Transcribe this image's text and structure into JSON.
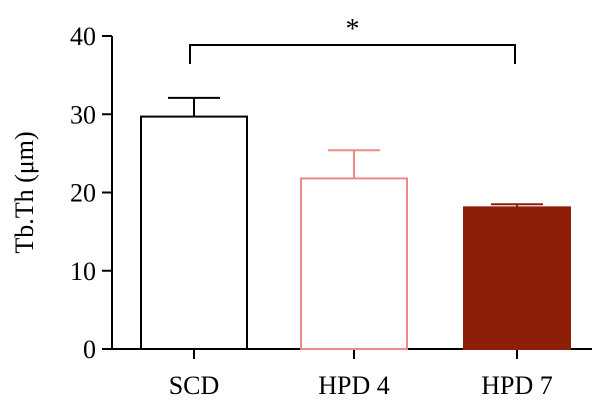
{
  "chart_data": {
    "type": "bar",
    "title": "",
    "xlabel": "",
    "ylabel": "Tb.Th (μm)",
    "categories": [
      "SCD",
      "HPD 4",
      "HPD 7"
    ],
    "values": [
      29.7,
      21.8,
      18.1
    ],
    "error_upper": [
      32.1,
      25.4,
      18.5
    ],
    "ylim": [
      0,
      40
    ],
    "yticks": [
      0,
      10,
      20,
      30,
      40
    ],
    "ytick_labels": [
      "0",
      "10",
      "20",
      "30",
      "40"
    ],
    "grid": false,
    "bar_styles": [
      {
        "fill": "#ffffff",
        "stroke": "#000000"
      },
      {
        "fill": "#ffffff",
        "stroke": "#ec8b86"
      },
      {
        "fill": "#8e1e08",
        "stroke": "#8e1e08"
      }
    ],
    "significance": {
      "from": "SCD",
      "to": "HPD 7",
      "label": "*"
    }
  }
}
